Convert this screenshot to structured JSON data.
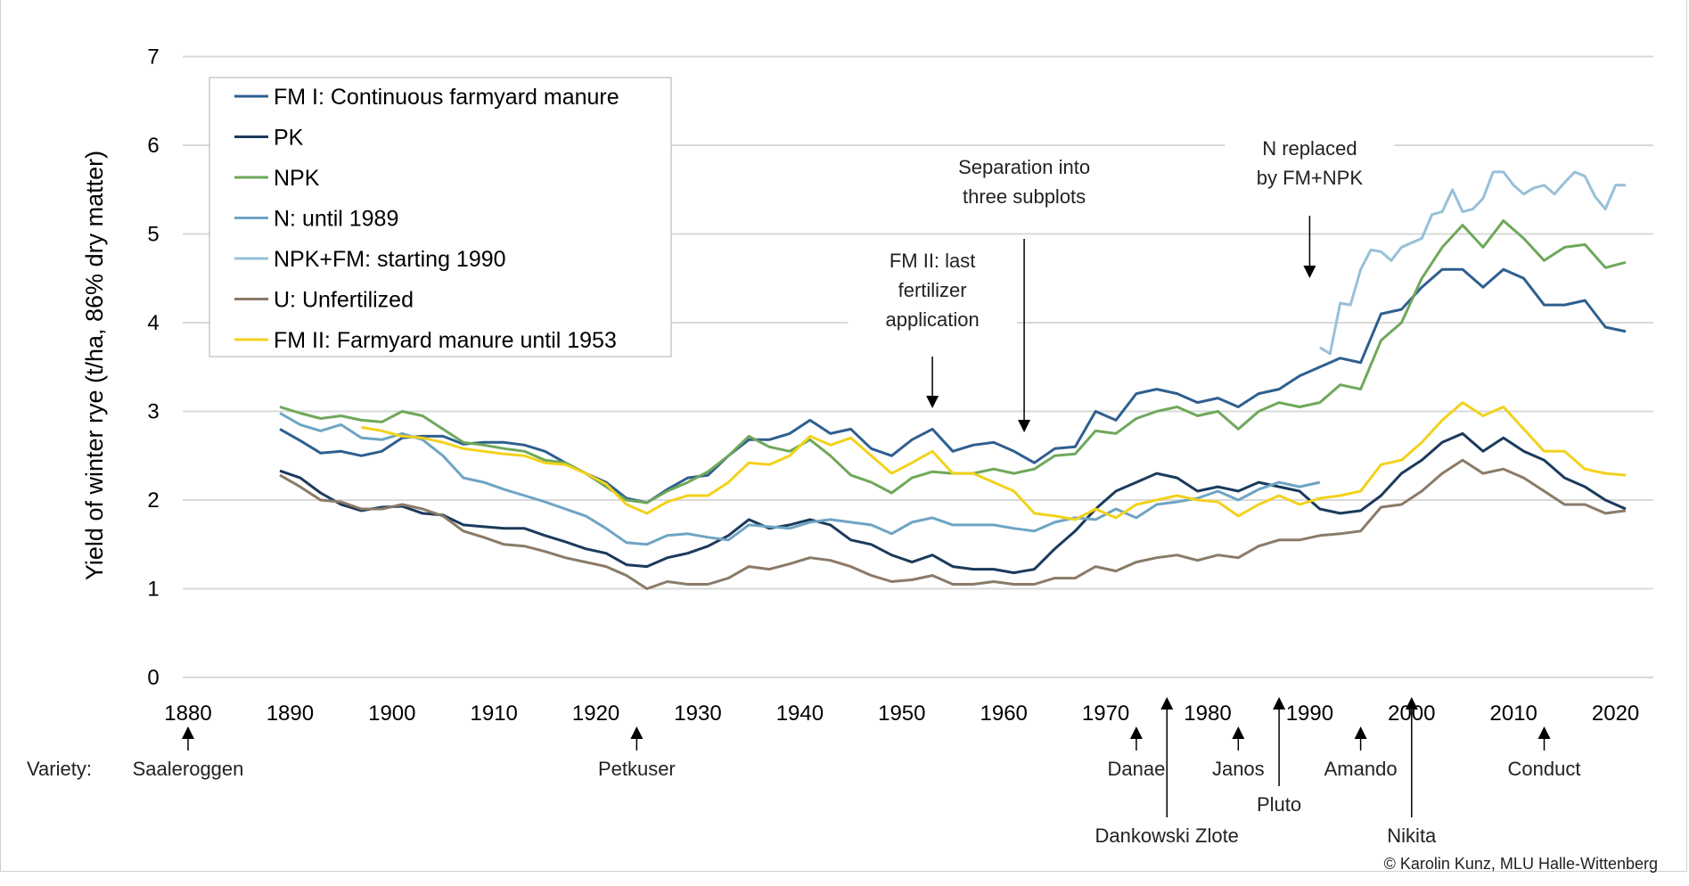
{
  "chart_data": {
    "type": "line",
    "title": "",
    "xlabel": "",
    "ylabel": "Yield of winter rye (t/ha, 86% dry matter)",
    "xlim": [
      1880,
      2023
    ],
    "ylim": [
      0,
      7
    ],
    "xticks": [
      1880,
      1890,
      1900,
      1910,
      1920,
      1930,
      1940,
      1950,
      1960,
      1970,
      1980,
      1990,
      2000,
      2010,
      2020
    ],
    "yticks": [
      0,
      1,
      2,
      3,
      4,
      5,
      6,
      7
    ],
    "grid": true,
    "legend_position": "top-left",
    "series": [
      {
        "name": "FM I: Continuous farmyard manure",
        "color": "#2e5f8f",
        "x": [
          1889,
          1891,
          1893,
          1895,
          1897,
          1899,
          1901,
          1903,
          1905,
          1907,
          1909,
          1911,
          1913,
          1915,
          1917,
          1919,
          1921,
          1923,
          1925,
          1927,
          1929,
          1931,
          1933,
          1935,
          1937,
          1939,
          1941,
          1943,
          1945,
          1947,
          1949,
          1951,
          1953,
          1955,
          1957,
          1959,
          1961,
          1963,
          1965,
          1967,
          1969,
          1971,
          1973,
          1975,
          1977,
          1979,
          1981,
          1983,
          1985,
          1987,
          1989,
          1991,
          1993,
          1995,
          1997,
          1999,
          2001,
          2003,
          2005,
          2007,
          2009,
          2011,
          2013,
          2015,
          2017,
          2019,
          2021
        ],
        "values": [
          2.8,
          2.67,
          2.53,
          2.55,
          2.5,
          2.55,
          2.7,
          2.72,
          2.72,
          2.63,
          2.65,
          2.65,
          2.62,
          2.55,
          2.42,
          2.3,
          2.2,
          2.02,
          1.97,
          2.12,
          2.25,
          2.28,
          2.5,
          2.68,
          2.68,
          2.75,
          2.9,
          2.75,
          2.8,
          2.58,
          2.5,
          2.68,
          2.8,
          2.55,
          2.62,
          2.65,
          2.55,
          2.42,
          2.58,
          2.6,
          3.0,
          2.9,
          3.2,
          3.25,
          3.2,
          3.1,
          3.15,
          3.05,
          3.2,
          3.25,
          3.4,
          3.5,
          3.6,
          3.55,
          4.1,
          4.15,
          4.4,
          4.6,
          4.6,
          4.4,
          4.6,
          4.5,
          4.2,
          4.2,
          4.25,
          3.95,
          3.9
        ]
      },
      {
        "name": "PK",
        "color": "#1b3a5c",
        "x": [
          1889,
          1891,
          1893,
          1895,
          1897,
          1899,
          1901,
          1903,
          1905,
          1907,
          1909,
          1911,
          1913,
          1915,
          1917,
          1919,
          1921,
          1923,
          1925,
          1927,
          1929,
          1931,
          1933,
          1935,
          1937,
          1939,
          1941,
          1943,
          1945,
          1947,
          1949,
          1951,
          1953,
          1955,
          1957,
          1959,
          1961,
          1963,
          1965,
          1967,
          1969,
          1971,
          1973,
          1975,
          1977,
          1979,
          1981,
          1983,
          1985,
          1987,
          1989,
          1991,
          1993,
          1995,
          1997,
          1999,
          2001,
          2003,
          2005,
          2007,
          2009,
          2011,
          2013,
          2015,
          2017,
          2019,
          2021
        ],
        "values": [
          2.33,
          2.25,
          2.08,
          1.95,
          1.88,
          1.92,
          1.93,
          1.85,
          1.83,
          1.72,
          1.7,
          1.68,
          1.68,
          1.6,
          1.53,
          1.45,
          1.4,
          1.27,
          1.25,
          1.35,
          1.4,
          1.48,
          1.6,
          1.78,
          1.68,
          1.72,
          1.78,
          1.72,
          1.55,
          1.5,
          1.38,
          1.3,
          1.38,
          1.25,
          1.22,
          1.22,
          1.18,
          1.22,
          1.45,
          1.65,
          1.9,
          2.1,
          2.2,
          2.3,
          2.25,
          2.1,
          2.15,
          2.1,
          2.2,
          2.15,
          2.1,
          1.9,
          1.85,
          1.88,
          2.05,
          2.3,
          2.45,
          2.65,
          2.75,
          2.55,
          2.7,
          2.55,
          2.45,
          2.25,
          2.15,
          2.0,
          1.9
        ]
      },
      {
        "name": "NPK",
        "color": "#6fa85a",
        "x": [
          1889,
          1891,
          1893,
          1895,
          1897,
          1899,
          1901,
          1903,
          1905,
          1907,
          1909,
          1911,
          1913,
          1915,
          1917,
          1919,
          1921,
          1923,
          1925,
          1927,
          1929,
          1931,
          1933,
          1935,
          1937,
          1939,
          1941,
          1943,
          1945,
          1947,
          1949,
          1951,
          1953,
          1955,
          1957,
          1959,
          1961,
          1963,
          1965,
          1967,
          1969,
          1971,
          1973,
          1975,
          1977,
          1979,
          1981,
          1983,
          1985,
          1987,
          1989,
          1991,
          1993,
          1995,
          1997,
          1999,
          2001,
          2003,
          2005,
          2007,
          2009,
          2011,
          2013,
          2015,
          2017,
          2019,
          2021
        ],
        "values": [
          3.05,
          2.98,
          2.92,
          2.95,
          2.9,
          2.88,
          3.0,
          2.95,
          2.8,
          2.65,
          2.62,
          2.58,
          2.55,
          2.45,
          2.42,
          2.3,
          2.15,
          2.0,
          1.97,
          2.1,
          2.2,
          2.32,
          2.5,
          2.72,
          2.6,
          2.55,
          2.68,
          2.5,
          2.28,
          2.2,
          2.08,
          2.25,
          2.32,
          2.3,
          2.3,
          2.35,
          2.3,
          2.35,
          2.5,
          2.52,
          2.78,
          2.75,
          2.92,
          3.0,
          3.05,
          2.95,
          3.0,
          2.8,
          3.0,
          3.1,
          3.05,
          3.1,
          3.3,
          3.25,
          3.8,
          4.0,
          4.5,
          4.85,
          5.1,
          4.85,
          5.15,
          4.95,
          4.7,
          4.85,
          4.88,
          4.62,
          4.68
        ]
      },
      {
        "name": "N: until 1989",
        "color": "#6ea4c4",
        "x": [
          1889,
          1891,
          1893,
          1895,
          1897,
          1899,
          1901,
          1903,
          1905,
          1907,
          1909,
          1911,
          1913,
          1915,
          1917,
          1919,
          1921,
          1923,
          1925,
          1927,
          1929,
          1931,
          1933,
          1935,
          1937,
          1939,
          1941,
          1943,
          1945,
          1947,
          1949,
          1951,
          1953,
          1955,
          1957,
          1959,
          1961,
          1963,
          1965,
          1967,
          1969,
          1971,
          1973,
          1975,
          1977,
          1979,
          1981,
          1983,
          1985,
          1987,
          1989,
          1991
        ],
        "values": [
          2.98,
          2.85,
          2.78,
          2.85,
          2.7,
          2.68,
          2.75,
          2.68,
          2.5,
          2.25,
          2.2,
          2.12,
          2.05,
          1.98,
          1.9,
          1.82,
          1.68,
          1.52,
          1.5,
          1.6,
          1.62,
          1.58,
          1.55,
          1.72,
          1.7,
          1.68,
          1.75,
          1.78,
          1.75,
          1.72,
          1.62,
          1.75,
          1.8,
          1.72,
          1.72,
          1.72,
          1.68,
          1.65,
          1.75,
          1.8,
          1.78,
          1.9,
          1.8,
          1.95,
          1.98,
          2.02,
          2.1,
          2.0,
          2.12,
          2.2,
          2.15,
          2.2
        ]
      },
      {
        "name": "NPK+FM: starting 1990",
        "color": "#98c0d8",
        "x": [
          1991,
          1992,
          1993,
          1994,
          1995,
          1996,
          1997,
          1998,
          1999,
          2000,
          2001,
          2002,
          2003,
          2004,
          2005,
          2006,
          2007,
          2008,
          2009,
          2010,
          2011,
          2012,
          2013,
          2014,
          2015,
          2016,
          2017,
          2018,
          2019,
          2020,
          2021
        ],
        "values": [
          3.72,
          3.65,
          4.22,
          4.2,
          4.6,
          4.82,
          4.8,
          4.7,
          4.85,
          4.9,
          4.95,
          5.22,
          5.25,
          5.5,
          5.25,
          5.28,
          5.4,
          5.7,
          5.7,
          5.55,
          5.45,
          5.52,
          5.55,
          5.45,
          5.58,
          5.7,
          5.65,
          5.42,
          5.28,
          5.55,
          5.55
        ]
      },
      {
        "name": "U: Unfertilized",
        "color": "#8a7a68",
        "x": [
          1889,
          1891,
          1893,
          1895,
          1897,
          1899,
          1901,
          1903,
          1905,
          1907,
          1909,
          1911,
          1913,
          1915,
          1917,
          1919,
          1921,
          1923,
          1925,
          1927,
          1929,
          1931,
          1933,
          1935,
          1937,
          1939,
          1941,
          1943,
          1945,
          1947,
          1949,
          1951,
          1953,
          1955,
          1957,
          1959,
          1961,
          1963,
          1965,
          1967,
          1969,
          1971,
          1973,
          1975,
          1977,
          1979,
          1981,
          1983,
          1985,
          1987,
          1989,
          1991,
          1993,
          1995,
          1997,
          1999,
          2001,
          2003,
          2005,
          2007,
          2009,
          2011,
          2013,
          2015,
          2017,
          2019,
          2021
        ],
        "values": [
          2.28,
          2.15,
          2.0,
          1.98,
          1.9,
          1.9,
          1.95,
          1.9,
          1.82,
          1.65,
          1.58,
          1.5,
          1.48,
          1.42,
          1.35,
          1.3,
          1.25,
          1.15,
          1.0,
          1.08,
          1.05,
          1.05,
          1.12,
          1.25,
          1.22,
          1.28,
          1.35,
          1.32,
          1.25,
          1.15,
          1.08,
          1.1,
          1.15,
          1.05,
          1.05,
          1.08,
          1.05,
          1.05,
          1.12,
          1.12,
          1.25,
          1.2,
          1.3,
          1.35,
          1.38,
          1.32,
          1.38,
          1.35,
          1.48,
          1.55,
          1.55,
          1.6,
          1.62,
          1.65,
          1.92,
          1.95,
          2.1,
          2.3,
          2.45,
          2.3,
          2.35,
          2.25,
          2.1,
          1.95,
          1.95,
          1.85,
          1.88
        ]
      },
      {
        "name": "FM II: Farmyard manure until 1953",
        "color": "#f2d21c",
        "x": [
          1897,
          1899,
          1901,
          1903,
          1905,
          1907,
          1909,
          1911,
          1913,
          1915,
          1917,
          1919,
          1921,
          1923,
          1925,
          1927,
          1929,
          1931,
          1933,
          1935,
          1937,
          1939,
          1941,
          1943,
          1945,
          1947,
          1949,
          1951,
          1953,
          1955,
          1957,
          1959,
          1961,
          1963,
          1965,
          1967,
          1969,
          1971,
          1973,
          1975,
          1977,
          1979,
          1981,
          1983,
          1985,
          1987,
          1989,
          1991,
          1993,
          1995,
          1997,
          1999,
          2001,
          2003,
          2005,
          2007,
          2009,
          2011,
          2013,
          2015,
          2017,
          2019,
          2021
        ],
        "values": [
          2.82,
          2.78,
          2.72,
          2.7,
          2.65,
          2.58,
          2.55,
          2.52,
          2.5,
          2.42,
          2.4,
          2.3,
          2.18,
          1.95,
          1.85,
          1.98,
          2.05,
          2.05,
          2.2,
          2.42,
          2.4,
          2.5,
          2.72,
          2.62,
          2.7,
          2.5,
          2.3,
          2.42,
          2.55,
          2.3,
          2.3,
          2.2,
          2.1,
          1.85,
          1.82,
          1.78,
          1.9,
          1.8,
          1.95,
          2.0,
          2.05,
          2.0,
          1.98,
          1.82,
          1.95,
          2.05,
          1.95,
          2.02,
          2.05,
          2.1,
          2.4,
          2.45,
          2.65,
          2.9,
          3.1,
          2.95,
          3.05,
          2.8,
          2.55,
          2.55,
          2.35,
          2.3,
          2.28
        ]
      }
    ],
    "annotations": [
      {
        "text": [
          "FM II: last",
          "fertilizer",
          "application"
        ],
        "year": 1953
      },
      {
        "text": [
          "Separation into",
          "three subplots"
        ],
        "year": 1962
      },
      {
        "text": [
          "N replaced",
          "by FM+NPK"
        ],
        "year": 1990
      }
    ],
    "varieties_label": "Variety:",
    "varieties": [
      {
        "name": "Saaleroggen",
        "year": 1880,
        "row": 0
      },
      {
        "name": "Petkuser",
        "year": 1924,
        "row": 0
      },
      {
        "name": "Danae",
        "year": 1973,
        "row": 0
      },
      {
        "name": "Dankowski Zlote",
        "year": 1976,
        "row": 2
      },
      {
        "name": "Janos",
        "year": 1983,
        "row": 0
      },
      {
        "name": "Pluto",
        "year": 1987,
        "row": 1
      },
      {
        "name": "Amando",
        "year": 1995,
        "row": 0
      },
      {
        "name": "Nikita",
        "year": 2000,
        "row": 2
      },
      {
        "name": "Conduct",
        "year": 2013,
        "row": 0
      }
    ],
    "copyright": "© Karolin Kunz, MLU Halle-Wittenberg"
  }
}
